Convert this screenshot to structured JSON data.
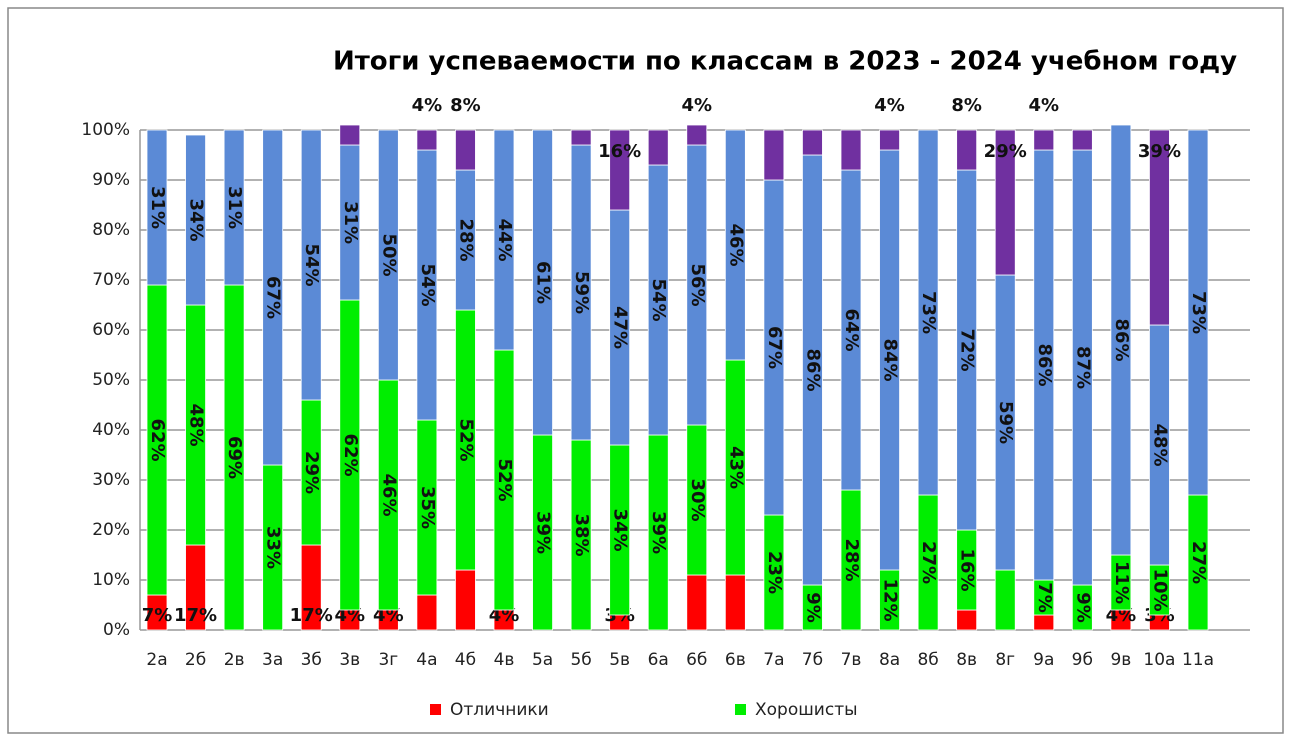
{
  "chart_data": {
    "type": "stacked_bar",
    "title": "Итоги успеваемости по классам в 2023 - 2024 учебном году",
    "categories": [
      "2а",
      "2б",
      "2в",
      "3а",
      "3б",
      "3в",
      "3г",
      "4а",
      "4б",
      "4в",
      "5а",
      "5б",
      "5в",
      "6а",
      "6б",
      "6в",
      "7а",
      "7б",
      "7в",
      "8а",
      "8б",
      "8в",
      "8г",
      "9а",
      "9б",
      "9в",
      "10а",
      "11а"
    ],
    "series": [
      {
        "name": "Отличники",
        "color": "#ff0000",
        "values": [
          7,
          17,
          0,
          0,
          17,
          4,
          4,
          7,
          12,
          4,
          0,
          0,
          3,
          0,
          11,
          11,
          0,
          0,
          0,
          0,
          0,
          4,
          0,
          3,
          0,
          4,
          3,
          0
        ],
        "value_labels": [
          "7%",
          "17%",
          null,
          null,
          "17%",
          "4%",
          "4%",
          null,
          null,
          "4%",
          null,
          null,
          "3%",
          null,
          null,
          null,
          null,
          null,
          null,
          null,
          null,
          null,
          null,
          null,
          null,
          "4%",
          "3%",
          null
        ]
      },
      {
        "name": "Хорошисты",
        "color": "#00ee00",
        "values": [
          62,
          48,
          69,
          33,
          29,
          62,
          46,
          35,
          52,
          52,
          39,
          38,
          34,
          39,
          30,
          43,
          23,
          9,
          28,
          12,
          27,
          16,
          12,
          7,
          9,
          11,
          10,
          27
        ],
        "value_labels": [
          "62%",
          "48%",
          "69%",
          "33%",
          "29%",
          "62%",
          "46%",
          "35%",
          "52%",
          "52%",
          "39%",
          "38%",
          "34%",
          "39%",
          "30%",
          "43%",
          "23%",
          "9%",
          "28%",
          "12%",
          "27%",
          "16%",
          null,
          "7%",
          "9%",
          "11%",
          "10%",
          "27%"
        ]
      },
      {
        "color": "#5b8ad6",
        "values": [
          31,
          34,
          31,
          67,
          54,
          31,
          50,
          54,
          28,
          44,
          61,
          59,
          47,
          54,
          56,
          46,
          67,
          86,
          64,
          84,
          73,
          72,
          59,
          86,
          87,
          86,
          48,
          73
        ],
        "value_labels": [
          "31%",
          "34%",
          "31%",
          "67%",
          "54%",
          "31%",
          "50%",
          "54%",
          "28%",
          "44%",
          "61%",
          "59%",
          "47%",
          "54%",
          "56%",
          "46%",
          "67%",
          "86%",
          "64%",
          "84%",
          "73%",
          "72%",
          "59%",
          "86%",
          "87%",
          "86%",
          "48%",
          "73%"
        ]
      },
      {
        "color": "#7030a0",
        "values": [
          0,
          0,
          0,
          0,
          0,
          4,
          0,
          4,
          8,
          0,
          0,
          3,
          16,
          7,
          4,
          0,
          10,
          5,
          8,
          4,
          0,
          8,
          29,
          4,
          4,
          0,
          39,
          0
        ],
        "value_labels": [
          null,
          null,
          null,
          null,
          null,
          null,
          null,
          "4%",
          "8%",
          null,
          null,
          null,
          "16%",
          null,
          "4%",
          null,
          null,
          null,
          null,
          "4%",
          null,
          "8%",
          "29%",
          "4%",
          null,
          null,
          "39%",
          null
        ]
      }
    ],
    "ylim": [
      0,
      100
    ],
    "yticks": [
      {
        "value": 0,
        "label": "0%"
      },
      {
        "value": 10,
        "label": "10%"
      },
      {
        "value": 20,
        "label": "20%"
      },
      {
        "value": 30,
        "label": "30%"
      },
      {
        "value": 40,
        "label": "40%"
      },
      {
        "value": 50,
        "label": "50%"
      },
      {
        "value": 60,
        "label": "60%"
      },
      {
        "value": 70,
        "label": "70%"
      },
      {
        "value": 80,
        "label": "80%"
      },
      {
        "value": 90,
        "label": "90%"
      },
      {
        "value": 100,
        "label": "100%"
      }
    ],
    "grid": true,
    "legend": "bottom"
  }
}
